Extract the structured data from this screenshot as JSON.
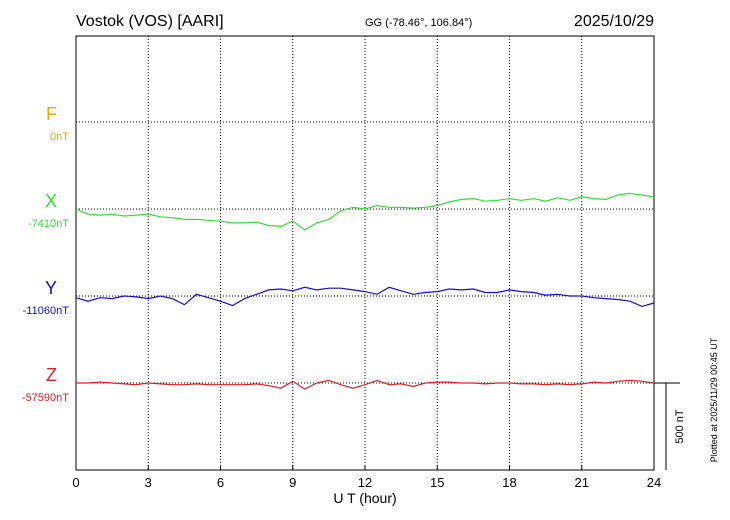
{
  "header": {
    "station": "Vostok (VOS)  [AARI]",
    "coords": "GG (-78.46°, 106.84°)",
    "date": "2025/10/29"
  },
  "side_note": "Plotted at 2025/11/29 00:45 UT",
  "chart_data": {
    "type": "line",
    "xlabel": "U T (hour)",
    "xlim": [
      0,
      24
    ],
    "xticks": [
      0,
      3,
      6,
      9,
      12,
      15,
      18,
      21,
      24
    ],
    "xtick_labels": [
      "0",
      "3",
      "6",
      "9",
      "12",
      "15",
      "18",
      "21",
      "24"
    ],
    "scale_bar_label": "500 nT",
    "scale_bar_nT": 500,
    "series": [
      {
        "name": "F",
        "baseline_label": "0nT",
        "baseline_nT": 0,
        "color": "#e8a800",
        "x": [],
        "values": []
      },
      {
        "name": "X",
        "baseline_label": "-7410nT",
        "baseline_nT": -7410,
        "color": "#33dd33",
        "x": [
          0,
          0.5,
          1,
          1.5,
          2,
          2.5,
          3,
          3.5,
          4,
          4.5,
          5,
          5.5,
          6,
          6.5,
          7,
          7.5,
          8,
          8.5,
          9,
          9.5,
          10,
          10.5,
          11,
          11.5,
          12,
          12.5,
          13,
          13.5,
          14,
          14.5,
          15,
          15.5,
          16,
          16.5,
          17,
          17.5,
          18,
          18.5,
          19,
          19.5,
          20,
          20.5,
          21,
          21.5,
          22,
          22.5,
          23,
          23.5,
          24
        ],
        "values": [
          -7410,
          -7440,
          -7445,
          -7440,
          -7450,
          -7445,
          -7440,
          -7455,
          -7460,
          -7470,
          -7470,
          -7475,
          -7480,
          -7490,
          -7490,
          -7485,
          -7505,
          -7510,
          -7480,
          -7530,
          -7490,
          -7470,
          -7420,
          -7400,
          -7410,
          -7390,
          -7400,
          -7400,
          -7405,
          -7400,
          -7390,
          -7370,
          -7355,
          -7350,
          -7365,
          -7360,
          -7350,
          -7360,
          -7350,
          -7365,
          -7345,
          -7360,
          -7340,
          -7350,
          -7355,
          -7330,
          -7320,
          -7330,
          -7340
        ]
      },
      {
        "name": "Y",
        "baseline_label": "-11060nT",
        "baseline_nT": -11060,
        "color": "#1010cc",
        "x": [
          0,
          0.5,
          1,
          1.5,
          2,
          2.5,
          3,
          3.5,
          4,
          4.5,
          5,
          5.5,
          6,
          6.5,
          7,
          7.5,
          8,
          8.5,
          9,
          9.5,
          10,
          10.5,
          11,
          11.5,
          12,
          12.5,
          13,
          13.5,
          14,
          14.5,
          15,
          15.5,
          16,
          16.5,
          17,
          17.5,
          18,
          18.5,
          19,
          19.5,
          20,
          20.5,
          21,
          21.5,
          22,
          22.5,
          23,
          23.5,
          24
        ],
        "values": [
          -11070,
          -11090,
          -11070,
          -11075,
          -11060,
          -11065,
          -11075,
          -11060,
          -11075,
          -11110,
          -11050,
          -11070,
          -11090,
          -11115,
          -11075,
          -11050,
          -11025,
          -11020,
          -11030,
          -11010,
          -11025,
          -11015,
          -11015,
          -11025,
          -11035,
          -11050,
          -11010,
          -11030,
          -11050,
          -11040,
          -11035,
          -11020,
          -11025,
          -11020,
          -11040,
          -11040,
          -11025,
          -11035,
          -11040,
          -11055,
          -11050,
          -11060,
          -11060,
          -11070,
          -11075,
          -11080,
          -11090,
          -11120,
          -11100
        ]
      },
      {
        "name": "Z",
        "baseline_label": "-57590nT",
        "baseline_nT": -57590,
        "color": "#dd2020",
        "x": [
          0,
          0.5,
          1,
          1.5,
          2,
          2.5,
          3,
          3.5,
          4,
          4.5,
          5,
          5.5,
          6,
          6.5,
          7,
          7.5,
          8,
          8.5,
          9,
          9.5,
          10,
          10.5,
          11,
          11.5,
          12,
          12.5,
          13,
          13.5,
          14,
          14.5,
          15,
          15.5,
          16,
          16.5,
          17,
          17.5,
          18,
          18.5,
          19,
          19.5,
          20,
          20.5,
          21,
          21.5,
          22,
          22.5,
          23,
          23.5,
          24
        ],
        "values": [
          -57590,
          -57590,
          -57585,
          -57590,
          -57595,
          -57600,
          -57590,
          -57595,
          -57600,
          -57600,
          -57595,
          -57600,
          -57600,
          -57600,
          -57600,
          -57595,
          -57605,
          -57620,
          -57580,
          -57625,
          -57590,
          -57575,
          -57600,
          -57620,
          -57600,
          -57575,
          -57600,
          -57595,
          -57610,
          -57590,
          -57585,
          -57585,
          -57590,
          -57590,
          -57595,
          -57590,
          -57590,
          -57595,
          -57595,
          -57600,
          -57595,
          -57600,
          -57595,
          -57585,
          -57590,
          -57580,
          -57575,
          -57580,
          -57590
        ]
      }
    ]
  }
}
